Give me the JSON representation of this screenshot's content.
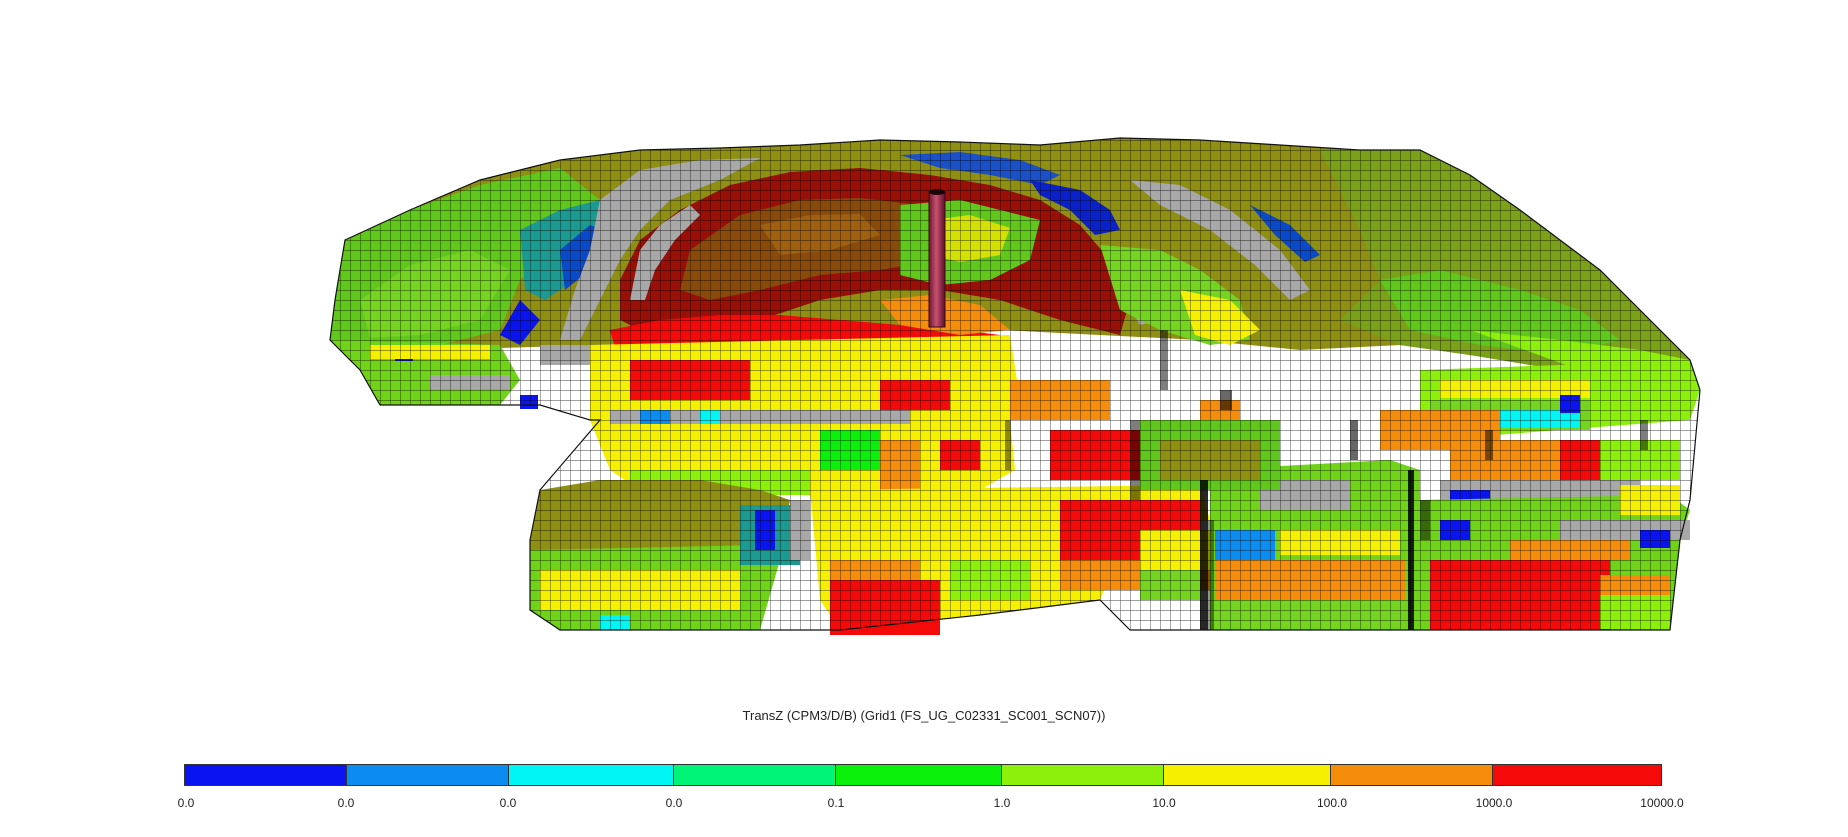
{
  "title": "TransZ (CPM3/D/B) (Grid1 (FS_UG_C02331_SC001_SCN07))",
  "colorbar": {
    "segments": [
      {
        "color": "#0a14f0"
      },
      {
        "color": "#0a8cf0"
      },
      {
        "color": "#00f5f5"
      },
      {
        "color": "#00f578"
      },
      {
        "color": "#0af00a"
      },
      {
        "color": "#8cf00a"
      },
      {
        "color": "#f5f000"
      },
      {
        "color": "#f58c0a"
      },
      {
        "color": "#f50a0a"
      }
    ],
    "ticks": [
      "0.0",
      "0.0",
      "0.0",
      "0.0",
      "0.1",
      "1.0",
      "10.0",
      "100.0",
      "1000.0",
      "10000.0"
    ]
  },
  "cell_colors": {
    "olive": "#8f8f12",
    "olive_dark": "#6f6f10",
    "brown": "#8a4a0a",
    "dark_red": "#9a1008",
    "gray": "#a8a8a8",
    "well": "#a83450"
  }
}
